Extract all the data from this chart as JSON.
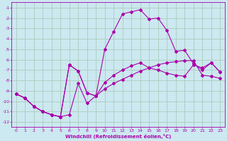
{
  "xlabel": "Windchill (Refroidissement éolien,°C)",
  "bg_color": "#cce8f0",
  "grid_color": "#aaccbb",
  "line_color": "#aa00aa",
  "spine_color": "#aa00aa",
  "xlim_min": -0.5,
  "xlim_max": 23.5,
  "ylim_min": -12.5,
  "ylim_max": -0.5,
  "xticks": [
    0,
    1,
    2,
    3,
    4,
    5,
    6,
    7,
    8,
    9,
    10,
    11,
    12,
    13,
    14,
    15,
    16,
    17,
    18,
    19,
    20,
    21,
    22,
    23
  ],
  "yticks": [
    -1,
    -2,
    -3,
    -4,
    -5,
    -6,
    -7,
    -8,
    -9,
    -10,
    -11,
    -12
  ],
  "series1_x": [
    0,
    1,
    2,
    3,
    4,
    5,
    6,
    7,
    8,
    9,
    10,
    11,
    12,
    13,
    14,
    15,
    16,
    17,
    18,
    19,
    20,
    21,
    22,
    23
  ],
  "series1_y": [
    -9.3,
    -9.7,
    -10.5,
    -11.0,
    -11.3,
    -11.5,
    -11.3,
    -8.3,
    -10.2,
    -9.5,
    -5.0,
    -3.3,
    -1.6,
    -1.4,
    -1.2,
    -2.1,
    -2.0,
    -3.2,
    -5.2,
    -5.1,
    -6.4,
    -7.0,
    -6.3,
    -7.2
  ],
  "series2_x": [
    0,
    1,
    2,
    3,
    4,
    5,
    6,
    7,
    8,
    9,
    10,
    11,
    12,
    13,
    14,
    15,
    16,
    17,
    18,
    19,
    20,
    21,
    22,
    23
  ],
  "series2_y": [
    -9.3,
    -9.7,
    -10.5,
    -11.0,
    -11.3,
    -11.5,
    -6.5,
    -7.1,
    -9.2,
    -9.5,
    -8.2,
    -7.5,
    -7.0,
    -6.6,
    -6.3,
    -6.8,
    -7.0,
    -7.3,
    -7.5,
    -7.6,
    -6.5,
    -6.8,
    -6.3,
    -7.2
  ],
  "series3_x": [
    0,
    1,
    2,
    3,
    4,
    5,
    6,
    7,
    8,
    9,
    10,
    11,
    12,
    13,
    14,
    15,
    16,
    17,
    18,
    19,
    20,
    21,
    22,
    23
  ],
  "series3_y": [
    -9.3,
    -9.7,
    -10.5,
    -11.0,
    -11.3,
    -11.5,
    -6.5,
    -7.1,
    -9.2,
    -9.5,
    -8.8,
    -8.3,
    -7.9,
    -7.5,
    -7.1,
    -6.8,
    -6.5,
    -6.3,
    -6.2,
    -6.1,
    -6.1,
    -7.5,
    -7.6,
    -7.8
  ]
}
